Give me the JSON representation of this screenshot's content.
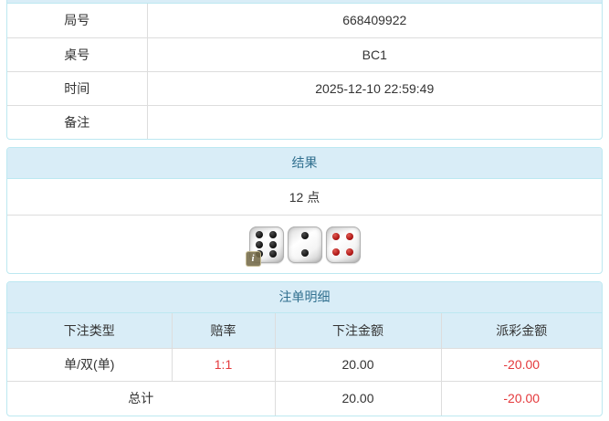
{
  "info_table": {
    "rows": [
      {
        "label": "局号",
        "value": "668409922"
      },
      {
        "label": "桌号",
        "value": "BC1"
      },
      {
        "label": "时间",
        "value": "2025-12-10 22:59:49"
      },
      {
        "label": "备注",
        "value": ""
      }
    ]
  },
  "result_panel": {
    "title": "结果",
    "points": "12 点",
    "dice": [
      {
        "value": 6,
        "color": "black"
      },
      {
        "value": 2,
        "color": "black"
      },
      {
        "value": 4,
        "color": "red"
      }
    ],
    "info_badge": "i"
  },
  "bets_panel": {
    "title": "注单明细",
    "columns": [
      "下注类型",
      "赔率",
      "下注金额",
      "派彩金额"
    ],
    "rows": [
      {
        "bet_type": "单/双(单)",
        "odds": "1:1",
        "bet_amount": "20.00",
        "payout": "-20.00"
      }
    ],
    "total": {
      "label": "总计",
      "bet_amount": "20.00",
      "payout": "-20.00"
    }
  },
  "colors": {
    "panel_border": "#bce8f1",
    "heading_bg": "#d9edf7",
    "heading_text": "#31708f",
    "table_border": "#dddddd",
    "body_text": "#333333",
    "negative_red": "#e4393c",
    "pip_black": "#111111",
    "pip_red": "#a80f0f"
  }
}
